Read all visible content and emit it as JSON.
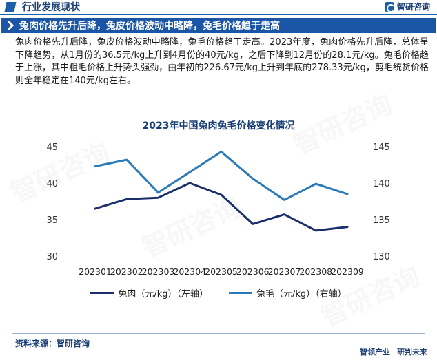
{
  "header": {
    "section_title": "行业发展现状",
    "brand": "智研咨询"
  },
  "headline": "兔肉价格先升后降，兔皮价格波动中略降，兔毛价格趋于走高",
  "summary": "兔肉价格先升后降，兔皮价格波动中略降，兔毛价格趋于走高。2023年度，兔肉价格先升后降，总体呈下降趋势，从1月份的36.5元/kg上升到4月份的40元/kg，之后下降到12月份的28.1元/kg。兔毛价格趋于上涨，其中粗毛价格上升势头强劲，由年初的226.67元/kg上升到年底的278.33元/kg，剪毛统货价格则全年稳定在140元/kg左右。",
  "chart_data": {
    "type": "line",
    "title": "2023年中国兔肉兔毛价格变化情况",
    "categories": [
      "202301",
      "202302",
      "202303",
      "202304",
      "202305",
      "202306",
      "202307",
      "202308",
      "202309"
    ],
    "y_left": {
      "min": 30,
      "max": 45,
      "ticks": [
        30,
        35,
        40,
        45
      ]
    },
    "y_right": {
      "min": 130,
      "max": 145,
      "ticks": [
        130,
        135,
        140,
        145
      ]
    },
    "series": [
      {
        "name": "兔肉（元/kg）（左轴）",
        "axis": "left",
        "color": "#1b2f6b",
        "values": [
          36.5,
          37.8,
          38.0,
          40.0,
          38.4,
          34.4,
          35.7,
          33.5,
          34.0
        ]
      },
      {
        "name": "兔毛（元/kg）（右轴）",
        "axis": "right",
        "color": "#2a7ab8",
        "values": [
          142.3,
          143.2,
          138.7,
          141.5,
          144.3,
          140.6,
          137.7,
          139.9,
          138.5
        ]
      }
    ]
  },
  "footer": {
    "source": "资料来源：智研咨询",
    "brand_left": "智领产业",
    "brand_right": "研判未来"
  },
  "watermark": "智研咨询"
}
